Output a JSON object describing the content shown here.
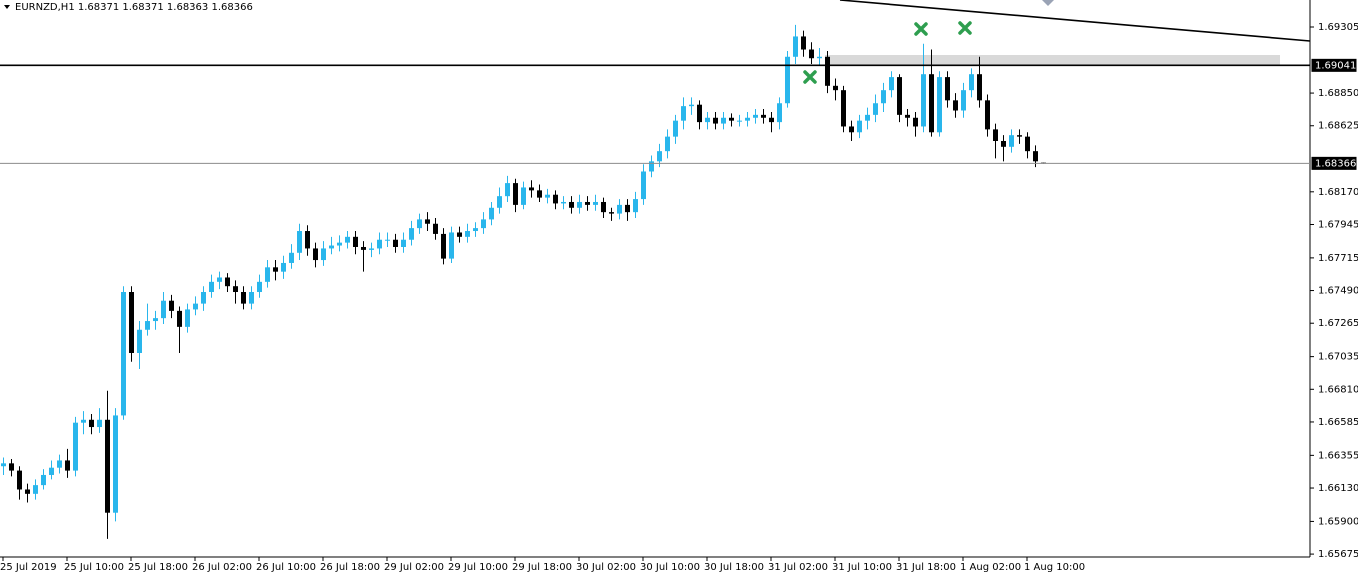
{
  "chart_data": {
    "type": "candlestick",
    "title": "EURNZD,H1  1.68371 1.68371 1.68363 1.68366",
    "up_color": "#29b6ec",
    "down_color": "#000000",
    "categories": [
      "25 Jul 2019",
      null,
      null,
      null,
      null,
      null,
      null,
      null,
      "25 Jul 10:00",
      null,
      null,
      null,
      null,
      null,
      null,
      null,
      "25 Jul 18:00",
      null,
      null,
      null,
      null,
      null,
      null,
      null,
      "26 Jul 02:00",
      null,
      null,
      null,
      null,
      null,
      null,
      null,
      "26 Jul 10:00",
      null,
      null,
      null,
      null,
      null,
      null,
      null,
      "26 Jul 18:00",
      null,
      null,
      null,
      null,
      null,
      null,
      null,
      "29 Jul 02:00",
      null,
      null,
      null,
      null,
      null,
      null,
      null,
      "29 Jul 10:00",
      null,
      null,
      null,
      null,
      null,
      null,
      null,
      "29 Jul 18:00",
      null,
      null,
      null,
      null,
      null,
      null,
      null,
      "30 Jul 02:00",
      null,
      null,
      null,
      null,
      null,
      null,
      null,
      "30 Jul 10:00",
      null,
      null,
      null,
      null,
      null,
      null,
      null,
      "30 Jul 18:00",
      null,
      null,
      null,
      null,
      null,
      null,
      null,
      "31 Jul 02:00",
      null,
      null,
      null,
      null,
      null,
      null,
      null,
      "31 Jul 10:00",
      null,
      null,
      null,
      null,
      null,
      null,
      null,
      "31 Jul 18:00",
      null,
      null,
      null,
      null,
      null,
      null,
      null,
      "1 Aug 02:00",
      null,
      null,
      null,
      null,
      null,
      null,
      null,
      "1 Aug 10:00",
      null,
      null
    ],
    "open": [
      1.6628,
      1.663,
      1.6625,
      1.6612,
      1.6609,
      1.6615,
      1.6622,
      1.6627,
      1.6632,
      1.6625,
      1.6658,
      1.666,
      1.6655,
      1.666,
      1.6596,
      1.6663,
      1.6748,
      1.6706,
      1.6722,
      1.6728,
      1.673,
      1.6742,
      1.6735,
      1.6724,
      1.6736,
      1.674,
      1.6748,
      1.6755,
      1.6758,
      1.6752,
      1.6748,
      1.674,
      1.6748,
      1.6755,
      1.6765,
      1.6762,
      1.6768,
      1.6775,
      1.679,
      1.6778,
      1.677,
      1.6778,
      1.678,
      1.6782,
      1.6786,
      1.6779,
      1.6777,
      1.6778,
      1.6784,
      1.6784,
      1.6779,
      1.6784,
      1.6792,
      1.6798,
      1.6795,
      1.6788,
      1.6771,
      1.6789,
      1.6786,
      1.679,
      1.6792,
      1.6798,
      1.6806,
      1.6814,
      1.6823,
      1.6808,
      1.682,
      1.6818,
      1.6813,
      1.6815,
      1.6809,
      1.681,
      1.6806,
      1.681,
      1.6808,
      1.681,
      1.6803,
      1.6802,
      1.6808,
      1.6803,
      1.6812,
      1.6831,
      1.6838,
      1.6845,
      1.6855,
      1.6866,
      1.6876,
      1.6877,
      1.6865,
      1.6868,
      1.6864,
      1.6868,
      1.6866,
      1.6866,
      1.6868,
      1.687,
      1.6868,
      1.6865,
      1.6878,
      1.691,
      1.6924,
      1.6915,
      1.6909,
      1.691,
      1.689,
      1.6887,
      1.6862,
      1.6858,
      1.6866,
      1.687,
      1.6878,
      1.6887,
      1.6896,
      1.687,
      1.6868,
      1.6862,
      1.6898,
      1.6858,
      1.6896,
      1.688,
      1.6873,
      1.6887,
      1.6898,
      1.688,
      1.686,
      1.6852,
      1.6848,
      1.6856,
      1.6855,
      1.6845,
      1.68371
    ],
    "high": [
      1.6634,
      1.6633,
      1.6628,
      1.6616,
      1.6619,
      1.6626,
      1.6632,
      1.6636,
      1.664,
      1.6662,
      1.6666,
      1.6664,
      1.6668,
      1.668,
      1.6668,
      1.6752,
      1.6752,
      1.6728,
      1.674,
      1.6735,
      1.6748,
      1.6746,
      1.6738,
      1.674,
      1.6745,
      1.6752,
      1.676,
      1.6762,
      1.6761,
      1.6756,
      1.6752,
      1.6752,
      1.676,
      1.677,
      1.677,
      1.6773,
      1.6781,
      1.6795,
      1.6794,
      1.6782,
      1.6783,
      1.6786,
      1.6787,
      1.679,
      1.679,
      1.6783,
      1.6782,
      1.6789,
      1.6789,
      1.6788,
      1.6789,
      1.6797,
      1.6802,
      1.6803,
      1.6799,
      1.6792,
      1.6793,
      1.6793,
      1.6795,
      1.6796,
      1.6803,
      1.681,
      1.682,
      1.6828,
      1.6826,
      1.6824,
      1.6825,
      1.6822,
      1.6819,
      1.6818,
      1.6814,
      1.6814,
      1.6815,
      1.6814,
      1.6815,
      1.6813,
      1.6806,
      1.6812,
      1.6812,
      1.6817,
      1.6836,
      1.6842,
      1.685,
      1.686,
      1.687,
      1.6882,
      1.6882,
      1.688,
      1.6872,
      1.6872,
      1.6872,
      1.6871,
      1.687,
      1.6872,
      1.6874,
      1.6874,
      1.6872,
      1.6882,
      1.6914,
      1.6932,
      1.6928,
      1.692,
      1.6916,
      1.6914,
      1.6895,
      1.689,
      1.6866,
      1.687,
      1.6875,
      1.6884,
      1.6892,
      1.69,
      1.6898,
      1.6874,
      1.6872,
      1.6919,
      1.6915,
      1.69,
      1.69,
      1.6885,
      1.6892,
      1.6902,
      1.691,
      1.6884,
      1.6864,
      1.6856,
      1.686,
      1.686,
      1.6858,
      1.6849,
      1.68371
    ],
    "low": [
      1.6622,
      1.6621,
      1.6605,
      1.6603,
      1.6605,
      1.6612,
      1.6619,
      1.6623,
      1.662,
      1.6621,
      1.665,
      1.665,
      1.6651,
      1.6578,
      1.659,
      1.666,
      1.67,
      1.6695,
      1.6718,
      1.6722,
      1.6726,
      1.673,
      1.6706,
      1.672,
      1.6732,
      1.6735,
      1.6744,
      1.675,
      1.6748,
      1.674,
      1.6736,
      1.6736,
      1.6744,
      1.6751,
      1.6756,
      1.6757,
      1.6764,
      1.677,
      1.6773,
      1.6765,
      1.6766,
      1.6774,
      1.6776,
      1.6778,
      1.6774,
      1.6762,
      1.6772,
      1.6774,
      1.6779,
      1.6775,
      1.6775,
      1.678,
      1.6788,
      1.679,
      1.6784,
      1.6767,
      1.6768,
      1.6782,
      1.6782,
      1.6786,
      1.6788,
      1.6794,
      1.6802,
      1.681,
      1.6803,
      1.6805,
      1.6813,
      1.681,
      1.6809,
      1.6805,
      1.6805,
      1.6802,
      1.6802,
      1.6804,
      1.6804,
      1.6799,
      1.6797,
      1.6798,
      1.6797,
      1.6799,
      1.6808,
      1.6827,
      1.6834,
      1.684,
      1.685,
      1.686,
      1.687,
      1.686,
      1.686,
      1.686,
      1.686,
      1.6862,
      1.6862,
      1.6862,
      1.6864,
      1.6864,
      1.6858,
      1.686,
      1.6875,
      1.6905,
      1.691,
      1.6905,
      1.6904,
      1.6885,
      1.688,
      1.6858,
      1.6852,
      1.6854,
      1.686,
      1.6865,
      1.6872,
      1.6882,
      1.6865,
      1.6862,
      1.6855,
      1.6858,
      1.6855,
      1.6855,
      1.6875,
      1.6868,
      1.6868,
      1.6882,
      1.6875,
      1.6855,
      1.684,
      1.6838,
      1.6844,
      1.685,
      1.684,
      1.6834,
      1.68363
    ],
    "close": [
      1.663,
      1.6625,
      1.6612,
      1.6609,
      1.6615,
      1.6622,
      1.6627,
      1.6632,
      1.6625,
      1.6658,
      1.666,
      1.6655,
      1.666,
      1.6596,
      1.6663,
      1.6748,
      1.6706,
      1.6722,
      1.6728,
      1.673,
      1.6742,
      1.6735,
      1.6724,
      1.6736,
      1.674,
      1.6748,
      1.6755,
      1.6758,
      1.6752,
      1.6748,
      1.674,
      1.6748,
      1.6755,
      1.6765,
      1.6762,
      1.6768,
      1.6775,
      1.679,
      1.6778,
      1.677,
      1.6778,
      1.678,
      1.6782,
      1.6786,
      1.6779,
      1.6777,
      1.6778,
      1.6784,
      1.6784,
      1.6779,
      1.6784,
      1.6792,
      1.6798,
      1.6795,
      1.6788,
      1.6771,
      1.6789,
      1.6786,
      1.679,
      1.6792,
      1.6798,
      1.6806,
      1.6814,
      1.6823,
      1.6808,
      1.682,
      1.6818,
      1.6813,
      1.6815,
      1.6809,
      1.681,
      1.6806,
      1.681,
      1.6808,
      1.681,
      1.6803,
      1.6802,
      1.6808,
      1.6803,
      1.6812,
      1.6831,
      1.6838,
      1.6845,
      1.6855,
      1.6866,
      1.6876,
      1.6877,
      1.6865,
      1.6868,
      1.6864,
      1.6868,
      1.6866,
      1.6866,
      1.6868,
      1.687,
      1.6868,
      1.6865,
      1.6878,
      1.691,
      1.6924,
      1.6915,
      1.6909,
      1.691,
      1.689,
      1.6887,
      1.6862,
      1.6858,
      1.6866,
      1.687,
      1.6878,
      1.6887,
      1.6896,
      1.687,
      1.6868,
      1.6862,
      1.6898,
      1.6858,
      1.6896,
      1.688,
      1.6873,
      1.6887,
      1.6898,
      1.688,
      1.686,
      1.6852,
      1.6848,
      1.6856,
      1.6855,
      1.6845,
      1.6838,
      1.68366
    ],
    "ylim": [
      1.65655,
      1.69491
    ],
    "yticks": [
      1.69305,
      {
        "value": 1.6885,
        "label": "1.68850"
      },
      1.68625,
      {
        "value": 1.6817,
        "label": "1.68170"
      },
      1.67945,
      1.67715,
      {
        "value": 1.6749,
        "label": "1.67490"
      },
      1.67265,
      1.67035,
      {
        "value": 1.6681,
        "label": "1.66810"
      },
      1.66585,
      1.66355,
      {
        "value": 1.6613,
        "label": "1.66130"
      },
      {
        "value": 1.659,
        "label": "1.65900"
      },
      1.65675
    ],
    "hlines": [
      {
        "value": 1.69041,
        "color": "#000000"
      },
      {
        "value": 1.68366,
        "color": "#8c8c8c"
      }
    ]
  }
}
